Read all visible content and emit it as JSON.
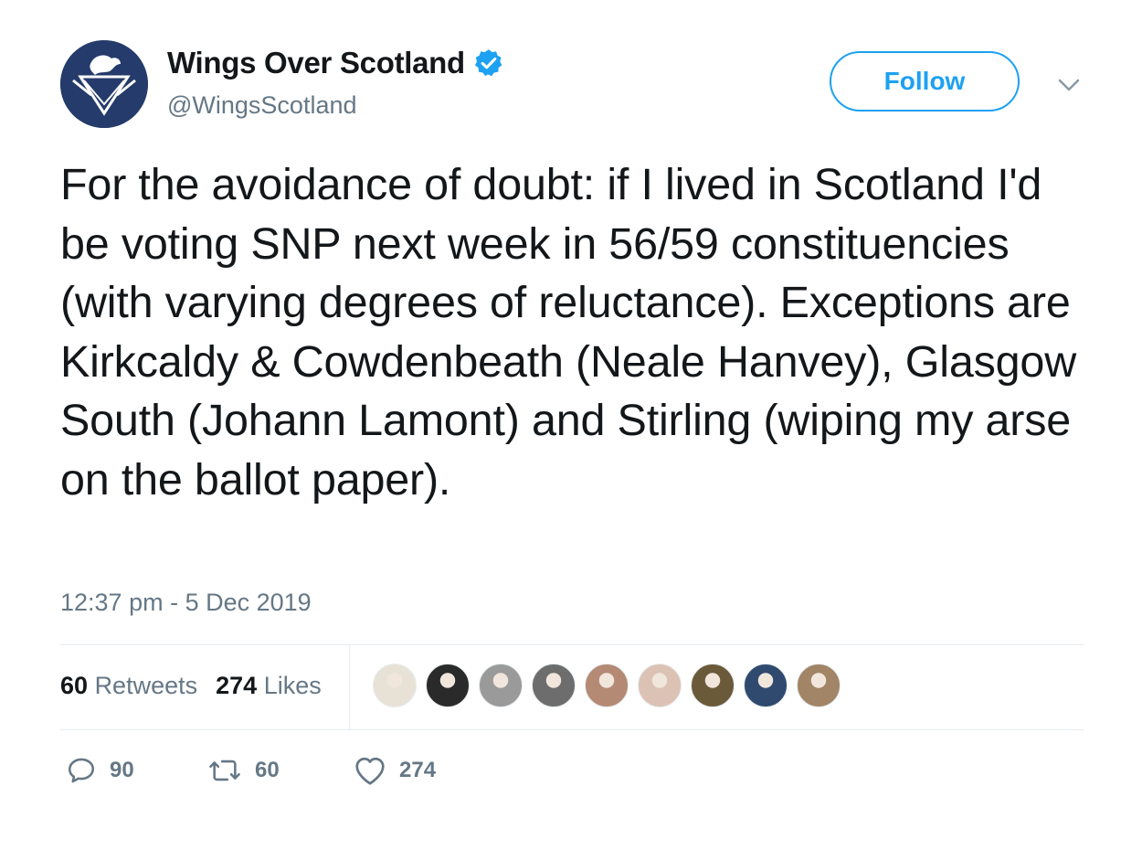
{
  "author": {
    "display_name": "Wings Over Scotland",
    "handle": "@WingsScotland",
    "verified": true,
    "avatar_icon": "wings-crest-icon",
    "brand_color": "#243b6b"
  },
  "follow_button": {
    "label": "Follow",
    "color": "#1da1f2"
  },
  "tweet": {
    "text": "For the avoidance of doubt: if I lived in Scotland I'd be voting SNP next week in 56/59 constituencies (with varying degrees of reluctance). Exceptions are Kirkcaldy & Cowdenbeath (Neale Hanvey), Glasgow South (Johann Lamont) and Stirling (wiping my arse on the ballot paper).",
    "timestamp": "12:37 pm - 5 Dec 2019"
  },
  "stats": {
    "retweets_count": "60",
    "retweets_label": "Retweets",
    "likes_count": "274",
    "likes_label": "Likes"
  },
  "likers": [
    {
      "color": "#e8e2d6",
      "icon": "avatar-1"
    },
    {
      "color": "#2a2a2a",
      "icon": "avatar-2"
    },
    {
      "color": "#9a9a9a",
      "icon": "avatar-3"
    },
    {
      "color": "#6d6d6d",
      "icon": "avatar-4"
    },
    {
      "color": "#b58a74",
      "icon": "avatar-5"
    },
    {
      "color": "#dcc2b4",
      "icon": "avatar-6"
    },
    {
      "color": "#6b5a3a",
      "icon": "avatar-7"
    },
    {
      "color": "#2f4a6e",
      "icon": "avatar-8"
    },
    {
      "color": "#a28466",
      "icon": "avatar-9"
    }
  ],
  "actions": {
    "reply_count": "90",
    "retweet_count": "60",
    "like_count": "274"
  }
}
